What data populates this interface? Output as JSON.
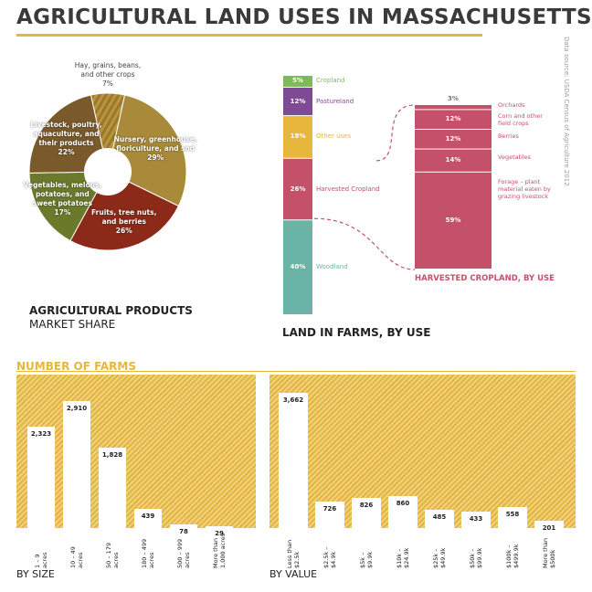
{
  "title": "AGRICULTURAL LAND USES IN MASSACHUSETTS",
  "source": "Data source: USDA Census of Agriculture 2012",
  "colors": {
    "accent": "#e7b63d",
    "cropland": "#7dbb5a",
    "pastureland": "#7e4a93",
    "other": "#e7b63d",
    "harvested": "#c5506a",
    "woodland": "#69b4a6"
  },
  "pie": {
    "title": "AGRICULTURAL PRODUCTS",
    "subtitle": "MARKET SHARE",
    "labels": [
      {
        "lines": [
          "Hay, grains, beans,",
          "and other crops",
          "7%"
        ]
      },
      {
        "lines": [
          "Nursery, greenhouse,",
          "floriculture, and sod",
          "29%"
        ]
      },
      {
        "lines": [
          "Fruits, tree nuts,",
          "and berries",
          "26%"
        ]
      },
      {
        "lines": [
          "Vegetables, melons,",
          "potatoes, and",
          "sweet potatoes",
          "17%"
        ]
      },
      {
        "lines": [
          "Livestock, poultry,",
          "aquaculture, and",
          "their products",
          "22%"
        ]
      }
    ]
  },
  "land": {
    "title": "LAND IN FARMS, BY USE",
    "harvest_title": "HARVESTED CROPLAND, BY USE",
    "segments": [
      {
        "pct": "5%",
        "name": "Cropland"
      },
      {
        "pct": "12%",
        "name": "Pastureland"
      },
      {
        "pct": "18%",
        "name": "Other uses"
      },
      {
        "pct": "26%",
        "name": "Harvested Cropland"
      },
      {
        "pct": "40%",
        "name": "Woodland"
      }
    ],
    "harvest_segments": [
      {
        "pct": "3%",
        "lines": [
          "Orchards"
        ]
      },
      {
        "pct": "12%",
        "lines": [
          "Corn and other",
          "field crops"
        ]
      },
      {
        "pct": "12%",
        "lines": [
          "Berries"
        ]
      },
      {
        "pct": "14%",
        "lines": [
          "Vegetables"
        ]
      },
      {
        "pct": "59%",
        "lines": [
          "Forage – plant",
          "material eaten by",
          "grazing livestock"
        ]
      }
    ]
  },
  "farms": {
    "title": "NUMBER OF FARMS",
    "by_size_label": "BY SIZE",
    "by_value_label": "BY VALUE"
  },
  "chart_data": [
    {
      "type": "pie",
      "title": "AGRICULTURAL PRODUCTS",
      "subtitle": "MARKET SHARE",
      "categories": [
        "Hay, grains, beans, and other crops",
        "Nursery, greenhouse, floriculture, and sod",
        "Fruits, tree nuts, and berries",
        "Vegetables, melons, potatoes, and sweet potatoes",
        "Livestock, poultry, aquaculture, and their products"
      ],
      "values": [
        7,
        29,
        26,
        17,
        22
      ]
    },
    {
      "type": "bar",
      "title": "LAND IN FARMS, BY USE",
      "categories": [
        "Cropland",
        "Pastureland",
        "Other uses",
        "Harvested Cropland",
        "Woodland"
      ],
      "values": [
        5,
        12,
        18,
        26,
        40
      ]
    },
    {
      "type": "bar",
      "title": "HARVESTED CROPLAND, BY USE",
      "categories": [
        "Orchards",
        "Corn and other field crops",
        "Berries",
        "Vegetables",
        "Forage – plant material eaten by grazing livestock"
      ],
      "values": [
        3,
        12,
        12,
        14,
        59
      ]
    },
    {
      "type": "bar",
      "title": "NUMBER OF FARMS",
      "xlabel": "BY SIZE",
      "categories": [
        [
          "1 – 9",
          "acres"
        ],
        [
          "10 – 49",
          "acres"
        ],
        [
          "50 – 179",
          "acres"
        ],
        [
          "180 – 499",
          "acres"
        ],
        [
          "500 – 999",
          "acres"
        ],
        [
          "More than",
          "1,000 acres"
        ]
      ],
      "values": [
        2323,
        2910,
        1828,
        439,
        78,
        29
      ],
      "value_labels": [
        "2,323",
        "2,910",
        "1,828",
        "439",
        "78",
        "29"
      ],
      "ylim": [
        0,
        3300
      ]
    },
    {
      "type": "bar",
      "xlabel": "BY VALUE",
      "categories": [
        [
          "Less than",
          "$2.5k"
        ],
        [
          "$2.5k –",
          "$4.9k"
        ],
        [
          "$5k –",
          "$9.9k"
        ],
        [
          "$10k –",
          "$24.9k"
        ],
        [
          "$25k –",
          "$49.9k"
        ],
        [
          "$50k –",
          "$99.9k"
        ],
        [
          "$100k –",
          "$499.9k"
        ],
        [
          "More than",
          "$500k"
        ]
      ],
      "values": [
        3662,
        726,
        826,
        860,
        485,
        433,
        558,
        201
      ],
      "value_labels": [
        "3,662",
        "726",
        "826",
        "860",
        "485",
        "433",
        "558",
        "201"
      ],
      "ylim": [
        0,
        3900
      ]
    }
  ]
}
